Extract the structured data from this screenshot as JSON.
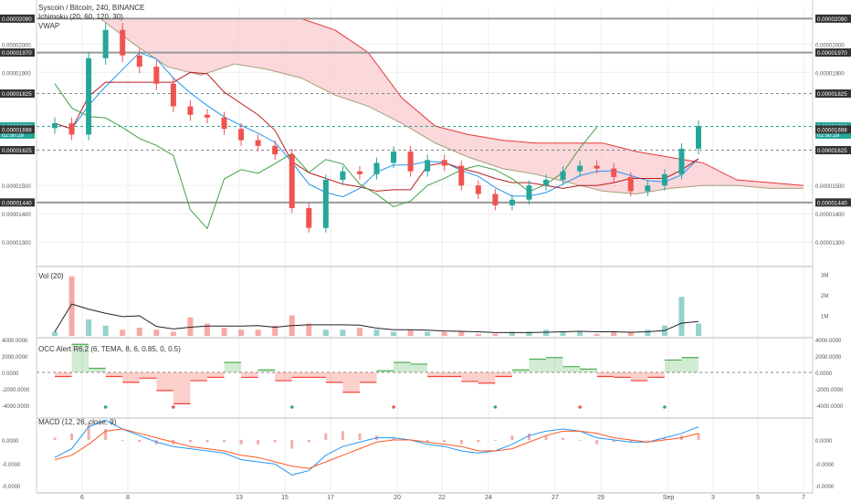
{
  "colors": {
    "up": "#26a69a",
    "down": "#ef5350",
    "cloud_bear": "#f8c8cc",
    "cloud_bull": "#c8e6c9",
    "ichimoku_line": "#b71c1c",
    "lagging": "#43a047",
    "vwap": "#2196f3",
    "osc_up": "#4caf50",
    "osc_down": "#f44336",
    "macd": "#2196f3",
    "signal": "#ff5722",
    "grid": "#eeeeee",
    "axis_text": "#555555"
  },
  "legend": {
    "title": "Syscoin / Bitcoin, 240, BINANCE",
    "ichimoku": "Ichimoku (20, 60, 120, 30)",
    "vwap": "VWAP"
  },
  "price_badges": {
    "left": [
      "0.00002090",
      "0.00001970",
      "0.00001825",
      "0.00001709",
      "02:50:28",
      "0.00001698",
      "0.00001625",
      "0.00001440"
    ],
    "right": [
      "0.00002090",
      "0.00001970",
      "0.00001825",
      "0.00001709",
      "02:50:28",
      "0.00001698",
      "0.00001625",
      "0.00001440"
    ]
  },
  "chart_data": [
    {
      "type": "line",
      "title": "Syscoin / Bitcoin, 240, BINANCE",
      "yticks": [
        "0.00002000",
        "0.00001900",
        "0.00001500",
        "0.00001400",
        "0.00001300"
      ],
      "horizontal_levels": [
        2.09e-05,
        1.97e-05,
        1.825e-05,
        1.709e-05,
        1.625e-05,
        1.44e-05
      ],
      "x_ticks": [
        "6",
        "8",
        "13",
        "15",
        "17",
        "20",
        "22",
        "24",
        "27",
        "29",
        "Sep",
        "3",
        "5",
        "7"
      ],
      "series": [
        {
          "name": "Close",
          "values": [
            1.72e-05,
            1.68e-05,
            1.95e-05,
            2.05e-05,
            1.96e-05,
            1.92e-05,
            1.86e-05,
            1.78e-05,
            1.75e-05,
            1.74e-05,
            1.7e-05,
            1.66e-05,
            1.64e-05,
            1.61e-05,
            1.42e-05,
            1.35e-05,
            1.52e-05,
            1.55e-05,
            1.54e-05,
            1.58e-05,
            1.62e-05,
            1.55e-05,
            1.59e-05,
            1.57e-05,
            1.5e-05,
            1.47e-05,
            1.43e-05,
            1.45e-05,
            1.5e-05,
            1.52e-05,
            1.55e-05,
            1.57e-05,
            1.56e-05,
            1.53e-05,
            1.48e-05,
            1.5e-05,
            1.54e-05,
            1.63e-05,
            1.71e-05
          ]
        },
        {
          "name": "Volume (M)",
          "values": [
            0.2,
            2.9,
            0.8,
            0.5,
            0.3,
            0.4,
            0.3,
            0.2,
            0.9,
            0.6,
            0.4,
            0.3,
            0.3,
            0.5,
            1.0,
            0.6,
            0.3,
            0.3,
            0.4,
            0.3,
            0.2,
            0.3,
            0.2,
            0.2,
            0.2,
            0.1,
            0.1,
            0.2,
            0.2,
            0.3,
            0.2,
            0.2,
            0.1,
            0.2,
            0.2,
            0.3,
            0.5,
            1.9,
            0.6
          ]
        }
      ]
    },
    {
      "type": "area",
      "title": "OCC Alert R6.2 (6, TEMA, 8, 6, 0.85, 0, 0.5)",
      "yticks": [
        "4000.0000",
        "2000.0000",
        "0.0000",
        "-2000.0000",
        "-4000.0000"
      ],
      "series": [
        {
          "name": "OCC",
          "values": [
            -500,
            3400,
            500,
            -500,
            -1200,
            -700,
            -2200,
            -3800,
            -1000,
            -600,
            1200,
            -600,
            300,
            -1000,
            -600,
            -600,
            -1200,
            -2400,
            -1200,
            200,
            1200,
            1000,
            -500,
            -500,
            -1100,
            -1300,
            -500,
            300,
            1600,
            1800,
            700,
            400,
            -500,
            -600,
            -1000,
            -600,
            1500,
            1800,
            2800
          ]
        }
      ]
    },
    {
      "type": "line",
      "title": "MACD (12, 26, close, 9)",
      "yticks": [
        "0.0000",
        "-0.0000",
        "-0.0000"
      ],
      "series": [
        {
          "name": "MACD",
          "values": [
            -0.8,
            -0.4,
            0.6,
            0.9,
            0.5,
            0.2,
            -0.1,
            -0.3,
            -0.4,
            -0.5,
            -0.6,
            -0.9,
            -1.0,
            -1.1,
            -1.6,
            -1.4,
            -0.7,
            -0.3,
            -0.1,
            0.1,
            0.1,
            0.0,
            -0.2,
            -0.3,
            -0.5,
            -0.6,
            -0.5,
            -0.2,
            0.2,
            0.4,
            0.5,
            0.4,
            0.1,
            0.0,
            -0.1,
            -0.1,
            0.1,
            0.3,
            0.6
          ]
        },
        {
          "name": "Signal",
          "values": [
            -0.9,
            -0.7,
            -0.2,
            0.4,
            0.5,
            0.3,
            0.1,
            -0.1,
            -0.3,
            -0.4,
            -0.5,
            -0.7,
            -0.8,
            -1.0,
            -1.2,
            -1.3,
            -1.0,
            -0.7,
            -0.4,
            -0.1,
            0.0,
            0.0,
            -0.1,
            -0.2,
            -0.3,
            -0.5,
            -0.5,
            -0.4,
            -0.1,
            0.2,
            0.4,
            0.4,
            0.3,
            0.1,
            0.0,
            -0.1,
            0.0,
            0.1,
            0.3
          ]
        }
      ]
    }
  ],
  "panes": {
    "vol": {
      "title": "Vol (20)",
      "yticks": [
        "3M",
        "2M",
        "1M"
      ]
    },
    "occ": {
      "title": "OCC Alert R6.2 (6, TEMA, 8, 6, 0.85, 0, 0.5)"
    },
    "macd": {
      "title": "MACD (12, 26, close, 9)"
    }
  }
}
